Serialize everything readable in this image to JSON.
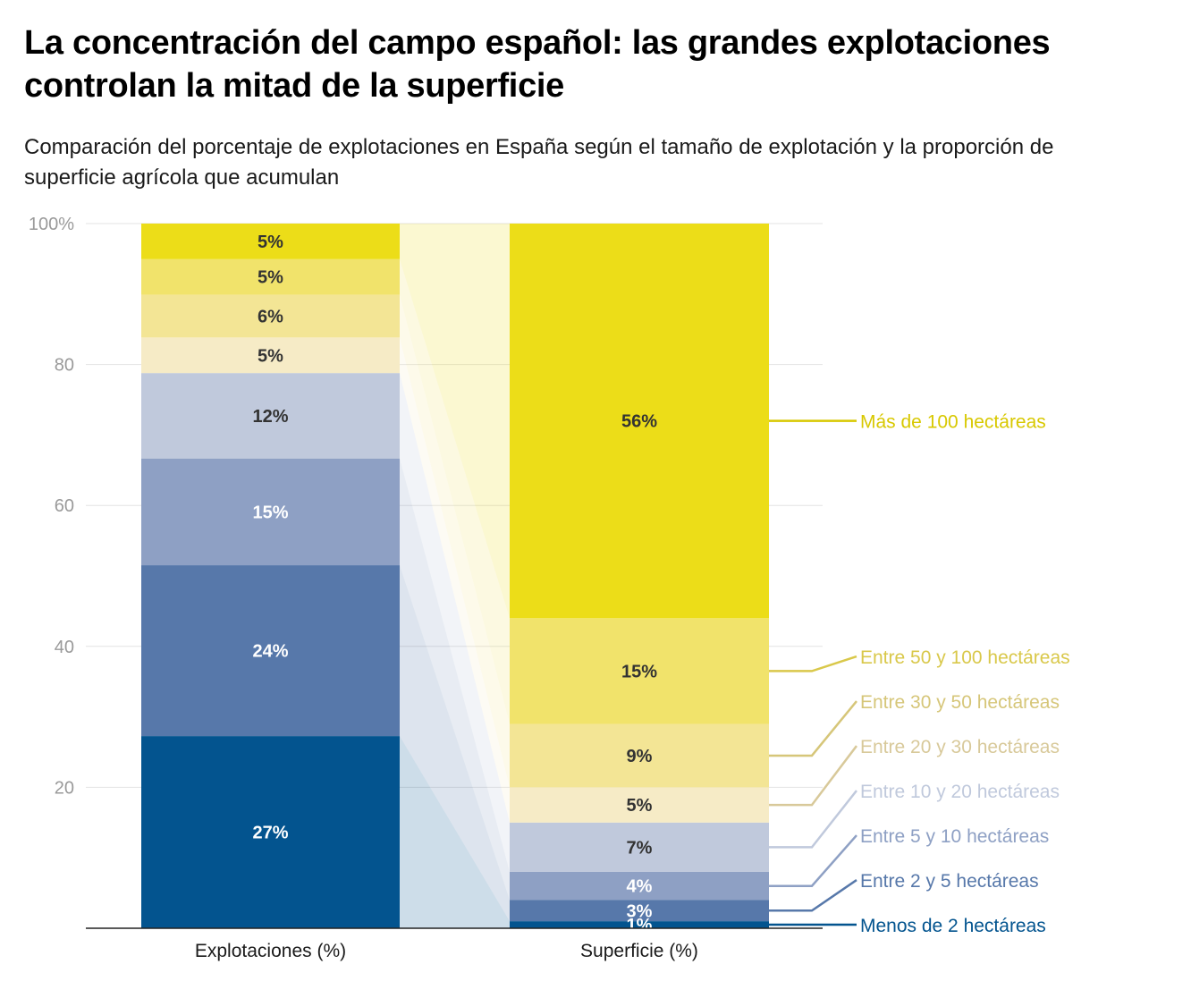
{
  "title": "La concentración del campo español: las grandes explotaciones controlan la mitad de la superficie",
  "subtitle": "Comparación del porcentaje de explotaciones en España según el tamaño de explotación y la proporción de superficie agrícola que acumulan",
  "chart_data": {
    "type": "bar",
    "stacked": true,
    "categories": [
      "Explotaciones (%)",
      "Superficie (%)"
    ],
    "y_ticks": [
      "20",
      "40",
      "60",
      "80",
      "100%"
    ],
    "ylim": [
      0,
      100
    ],
    "grid": true,
    "legend_position": "right",
    "series": [
      {
        "name": "Menos de 2 hectáreas",
        "values": [
          27,
          1
        ],
        "labels": [
          "27%",
          "1%"
        ],
        "color": "#03548f",
        "label_color": "#ffffff",
        "legend_color": "#03548f"
      },
      {
        "name": "Entre 2 y 5 hectáreas",
        "values": [
          24,
          3
        ],
        "labels": [
          "24%",
          "3%"
        ],
        "color": "#5778aa",
        "label_color": "#ffffff",
        "legend_color": "#5778aa"
      },
      {
        "name": "Entre 5 y 10 hectáreas",
        "values": [
          15,
          4
        ],
        "labels": [
          "15%",
          "4%"
        ],
        "color": "#8ea0c4",
        "label_color": "#ffffff",
        "legend_color": "#8ea0c4"
      },
      {
        "name": "Entre 10 y 20 hectáreas",
        "values": [
          12,
          7
        ],
        "labels": [
          "12%",
          "7%"
        ],
        "color": "#c0c9dc",
        "label_color": "#333333",
        "legend_color": "#c0c9dc"
      },
      {
        "name": "Entre 20 y 30 hectáreas",
        "values": [
          5,
          5
        ],
        "labels": [
          "5%",
          "5%"
        ],
        "color": "#f6ebc6",
        "label_color": "#333333",
        "legend_color": "#d8c99a"
      },
      {
        "name": "Entre 30 y 50 hectáreas",
        "values": [
          6,
          9
        ],
        "labels": [
          "6%",
          "9%"
        ],
        "color": "#f3e595",
        "label_color": "#333333",
        "legend_color": "#d6c679"
      },
      {
        "name": "Entre 50 y 100 hectáreas",
        "values": [
          5,
          15
        ],
        "labels": [
          "5%",
          "15%"
        ],
        "color": "#f1e36b",
        "label_color": "#333333",
        "legend_color": "#d9c84a"
      },
      {
        "name": "Más de 100 hectáreas",
        "values": [
          5,
          56
        ],
        "labels": [
          "5%",
          "56%"
        ],
        "color": "#ecdd18",
        "label_color": "#333333",
        "legend_color": "#d8c800"
      }
    ]
  }
}
